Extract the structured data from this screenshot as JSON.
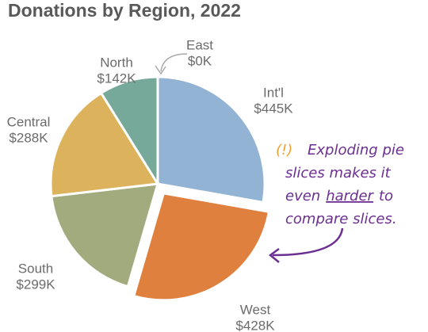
{
  "chart_data": {
    "type": "pie",
    "title": "Donations by Region, 2022",
    "categories": [
      "Int'l",
      "West",
      "South",
      "Central",
      "North",
      "East"
    ],
    "values": [
      445,
      428,
      299,
      288,
      142,
      0
    ],
    "value_labels": [
      "$445K",
      "$428K",
      "$299K",
      "$288K",
      "$142K",
      "$0K"
    ],
    "colors": [
      "#93b3d4",
      "#e0803f",
      "#a2ab7e",
      "#dcb35c",
      "#77a99b",
      "#cccccc"
    ],
    "exploded": "West",
    "annotation": {
      "mark": "(!)",
      "lines": [
        [
          "Exploding pie"
        ],
        [
          "slices makes it"
        ],
        [
          "even",
          "harder",
          "to"
        ],
        [
          "compare slices."
        ]
      ],
      "underlined": "harder"
    }
  }
}
